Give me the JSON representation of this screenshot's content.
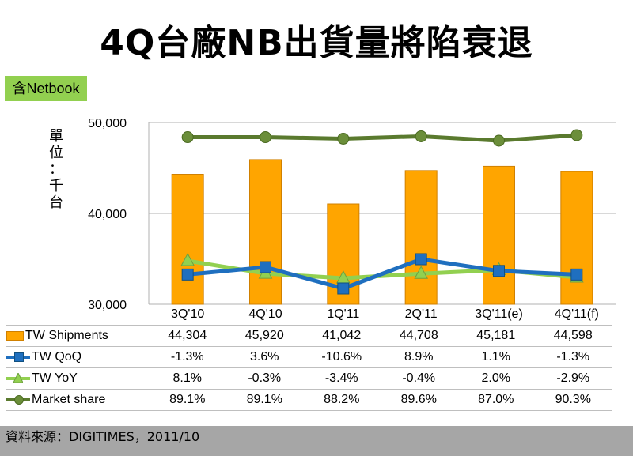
{
  "title": "4Q台廠NB出貨量將陷衰退",
  "tag": "含Netbook",
  "unit_chars": [
    "單",
    "位",
    "：",
    "千",
    "台"
  ],
  "footer": "資料來源：DIGITIMES，2011/10",
  "colors": {
    "bar": "#ffa500",
    "qoq": "#1f6fbf",
    "yoy": "#92d050",
    "share": "#5a7a2e",
    "tag_bg": "#92d050",
    "footer_bg": "#a6a6a6"
  },
  "chart_data": {
    "type": "bar",
    "categories": [
      "3Q'10",
      "4Q'10",
      "1Q'11",
      "2Q'11",
      "3Q'11(e)",
      "4Q'11(f)"
    ],
    "ylim": [
      30000,
      50000
    ],
    "yticks": [
      "30,000",
      "40,000",
      "50,000"
    ],
    "grid": true,
    "series": [
      {
        "name": "TW Shipments",
        "kind": "bar",
        "values": [
          44304,
          45920,
          41042,
          44708,
          45181,
          44598
        ],
        "labels": [
          "44,304",
          "45,920",
          "41,042",
          "44,708",
          "45,181",
          "44,598"
        ]
      },
      {
        "name": "TW QoQ",
        "kind": "line",
        "marker": "square",
        "values": [
          -1.3,
          3.6,
          -10.6,
          8.9,
          1.1,
          -1.3
        ],
        "labels": [
          "-1.3%",
          "3.6%",
          "-10.6%",
          "8.9%",
          "1.1%",
          "-1.3%"
        ]
      },
      {
        "name": "TW YoY",
        "kind": "line",
        "marker": "triangle",
        "values": [
          8.1,
          -0.3,
          -3.4,
          -0.4,
          2.0,
          -2.9
        ],
        "labels": [
          "8.1%",
          "-0.3%",
          "-3.4%",
          "-0.4%",
          "2.0%",
          "-2.9%"
        ]
      },
      {
        "name": "Market share",
        "kind": "line",
        "marker": "circle",
        "values": [
          89.1,
          89.1,
          88.2,
          89.6,
          87.0,
          90.3
        ],
        "labels": [
          "89.1%",
          "89.1%",
          "88.2%",
          "89.6%",
          "87.0%",
          "90.3%"
        ]
      }
    ]
  }
}
